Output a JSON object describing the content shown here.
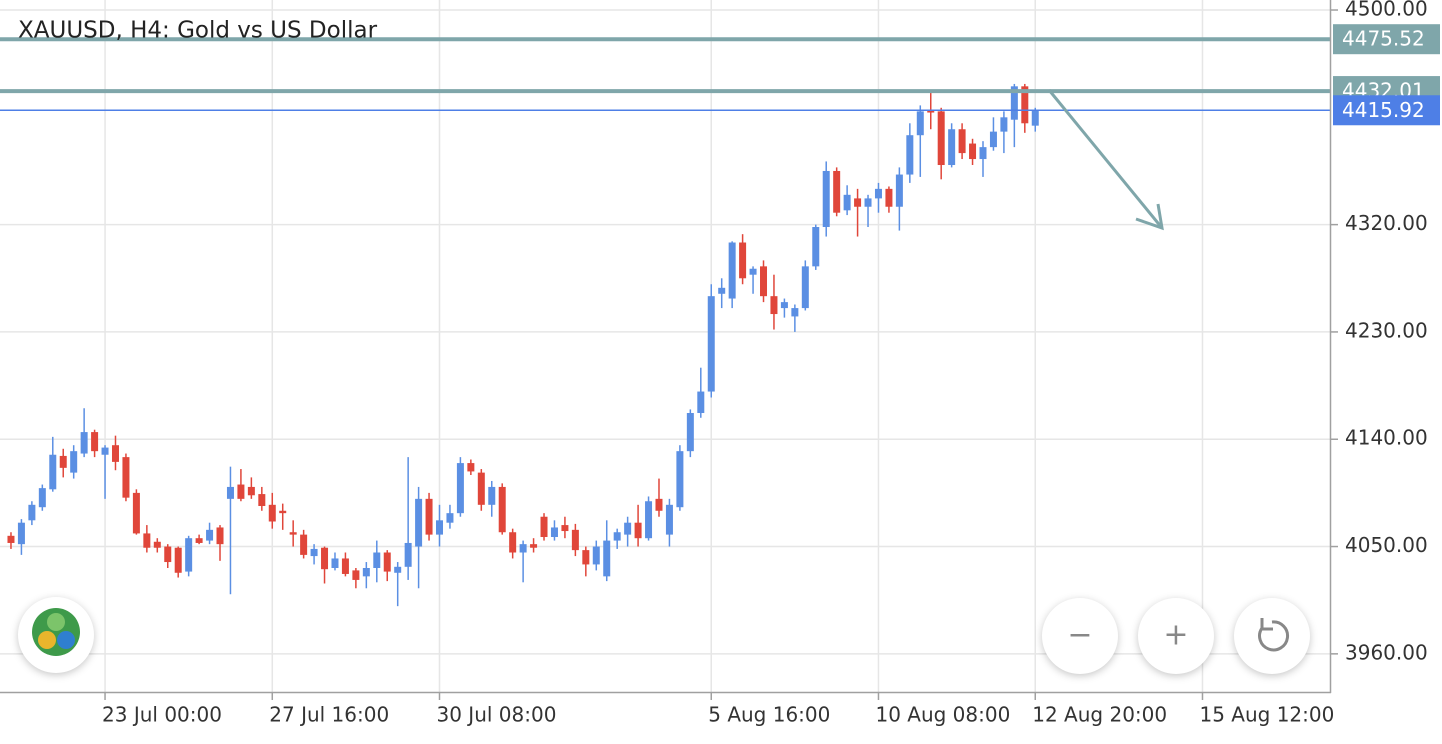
{
  "chart_data": {
    "type": "candlestick",
    "title": "XAUUSD, H4: Gold vs US Dollar",
    "up_color": "#5b8fe3",
    "down_color": "#e0463a",
    "open": [
      4059,
      4052,
      4072,
      4083,
      4098,
      4126,
      4112,
      4128,
      4146,
      4127,
      4135,
      4125,
      4095,
      4061,
      4054,
      4050,
      4049,
      4029,
      4057,
      4055,
      4066,
      4090,
      4102,
      4100,
      4094,
      4085,
      4080,
      4062,
      4060,
      4042,
      4049,
      4032,
      4040,
      4030,
      4025,
      4032,
      4045,
      4028,
      4033,
      4050,
      4090,
      4060,
      4070,
      4078,
      4120,
      4112,
      4085,
      4100,
      4062,
      4045,
      4052,
      4075,
      4058,
      4068,
      4064,
      4047,
      4035,
      4025,
      4055,
      4060,
      4070,
      4057,
      4090,
      4060,
      4083,
      4130,
      4162,
      4180,
      4262,
      4258,
      4305,
      4278,
      4285,
      4260,
      4250,
      4243,
      4250,
      4285,
      4318,
      4365,
      4332,
      4342,
      4335,
      4342,
      4350,
      4335,
      4362,
      4395,
      4416,
      4415,
      4370,
      4400,
      4388,
      4375,
      4385,
      4398,
      4408,
      4436,
      4403
    ],
    "high": [
      4062,
      4073,
      4088,
      4102,
      4142,
      4132,
      4135,
      4166,
      4148,
      4135,
      4143,
      4128,
      4098,
      4068,
      4057,
      4052,
      4050,
      4059,
      4060,
      4070,
      4068,
      4117,
      4115,
      4108,
      4100,
      4095,
      4086,
      4072,
      4064,
      4052,
      4050,
      4045,
      4045,
      4032,
      4037,
      4055,
      4047,
      4037,
      4125,
      4100,
      4095,
      4085,
      4085,
      4125,
      4123,
      4115,
      4105,
      4103,
      4065,
      4055,
      4057,
      4078,
      4072,
      4075,
      4069,
      4050,
      4055,
      4072,
      4065,
      4075,
      4085,
      4092,
      4107,
      4090,
      4135,
      4165,
      4200,
      4270,
      4275,
      4306,
      4312,
      4285,
      4290,
      4278,
      4258,
      4253,
      4290,
      4320,
      4373,
      4368,
      4353,
      4350,
      4345,
      4355,
      4352,
      4368,
      4405,
      4420,
      4432,
      4418,
      4405,
      4405,
      4392,
      4390,
      4410,
      4415,
      4438,
      4438,
      4418
    ],
    "low": [
      4048,
      4043,
      4068,
      4080,
      4096,
      4108,
      4107,
      4125,
      4125,
      4090,
      4114,
      4088,
      4060,
      4045,
      4045,
      4032,
      4024,
      4025,
      4052,
      4052,
      4038,
      4010,
      4088,
      4090,
      4080,
      4065,
      4064,
      4050,
      4040,
      4035,
      4019,
      4030,
      4025,
      4015,
      4015,
      4020,
      4021,
      4000,
      4022,
      4015,
      4055,
      4050,
      4065,
      4075,
      4110,
      4080,
      4075,
      4060,
      4040,
      4020,
      4045,
      4055,
      4055,
      4057,
      4042,
      4025,
      4030,
      4021,
      4048,
      4050,
      4050,
      4055,
      4075,
      4050,
      4080,
      4125,
      4158,
      4175,
      4250,
      4250,
      4270,
      4262,
      4255,
      4232,
      4242,
      4230,
      4248,
      4282,
      4310,
      4327,
      4328,
      4310,
      4318,
      4330,
      4330,
      4315,
      4355,
      4360,
      4400,
      4358,
      4368,
      4375,
      4370,
      4360,
      4382,
      4380,
      4385,
      4397,
      4398
    ],
    "close": [
      4053,
      4070,
      4085,
      4099,
      4127,
      4116,
      4130,
      4146,
      4130,
      4133,
      4121,
      4091,
      4061,
      4049,
      4049,
      4037,
      4028,
      4057,
      4053,
      4064,
      4052,
      4100,
      4090,
      4093,
      4084,
      4071,
      4078,
      4060,
      4043,
      4048,
      4031,
      4040,
      4027,
      4022,
      4032,
      4045,
      4029,
      4033,
      4053,
      4090,
      4060,
      4072,
      4078,
      4120,
      4113,
      4085,
      4100,
      4062,
      4045,
      4052,
      4049,
      4058,
      4066,
      4063,
      4047,
      4035,
      4050,
      4055,
      4062,
      4070,
      4057,
      4088,
      4080,
      4085,
      4130,
      4162,
      4180,
      4260,
      4267,
      4305,
      4275,
      4283,
      4260,
      4245,
      4255,
      4250,
      4285,
      4318,
      4365,
      4330,
      4345,
      4335,
      4342,
      4350,
      4335,
      4362,
      4395,
      4415,
      4414,
      4370,
      4400,
      4380,
      4375,
      4385,
      4398,
      4410,
      4436,
      4405,
      4415.92
    ],
    "xlim": [
      -1.05,
      126.2
    ],
    "xticks": [
      {
        "value": 9,
        "label": "23 Jul 00:00"
      },
      {
        "value": 25,
        "label": "27 Jul 16:00"
      },
      {
        "value": 41,
        "label": "30 Jul 08:00"
      },
      {
        "value": 67,
        "label": "5 Aug 16:00"
      },
      {
        "value": 83,
        "label": "10 Aug 08:00"
      },
      {
        "value": 98,
        "label": "12 Aug 20:00"
      },
      {
        "value": 114,
        "label": "15 Aug 12:00"
      }
    ],
    "ylim": [
      3928,
      4508.4
    ],
    "yticks": [
      {
        "value": 3960,
        "label": "3960.00"
      },
      {
        "value": 4050,
        "label": "4050.00"
      },
      {
        "value": 4140,
        "label": "4140.00"
      },
      {
        "value": 4230,
        "label": "4230.00"
      },
      {
        "value": 4320,
        "label": "4320.00"
      },
      {
        "value": 4500,
        "label": "4500.00"
      }
    ],
    "grid": true,
    "price_lines": [
      {
        "value": 4475.52,
        "color": "#7fa6aa"
      },
      {
        "value": 4432.01,
        "color": "#7fa6aa"
      },
      {
        "value": 4415.92,
        "color": "#4e7fe6"
      }
    ]
  },
  "controls": [
    "−",
    "+"
  ]
}
